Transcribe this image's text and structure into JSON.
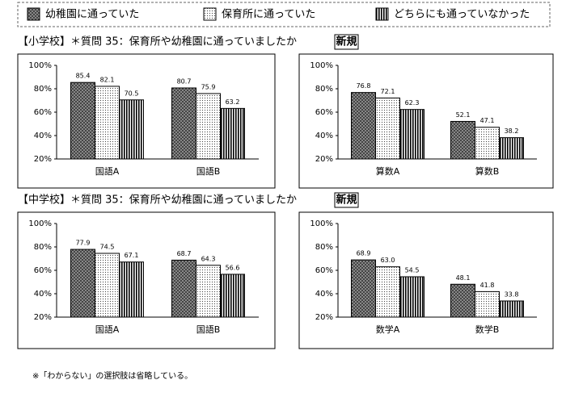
{
  "legend": [
    {
      "name": "幼稚園に通っていた",
      "pattern": "crosshatch"
    },
    {
      "name": "保育所に通っていた",
      "pattern": "dots"
    },
    {
      "name": "どちらにも通っていなかった",
      "pattern": "stripes"
    }
  ],
  "sections": [
    {
      "heading": "【小学校】＊質問 35：保育所や幼稚園に通っていましたか",
      "badge": "新規"
    },
    {
      "heading": "【中学校】＊質問 35：保育所や幼稚園に通っていましたか",
      "badge": "新規"
    }
  ],
  "footnote": "※「わからない」の選択肢は省略している。",
  "chart_data": [
    {
      "type": "bar",
      "categories": [
        "国語A",
        "国語B"
      ],
      "series": [
        {
          "values": [
            85.4,
            80.7
          ]
        },
        {
          "values": [
            82.1,
            75.9
          ]
        },
        {
          "values": [
            70.5,
            63.2
          ]
        }
      ],
      "ylim": [
        20,
        100
      ],
      "yticks": [
        {
          "value": 20,
          "label": "20%"
        },
        {
          "value": 40,
          "label": "40%"
        },
        {
          "value": 60,
          "label": "60%"
        },
        {
          "value": 80,
          "label": "80%"
        },
        {
          "value": 100,
          "label": "100%"
        }
      ],
      "grid": false
    },
    {
      "type": "bar",
      "categories": [
        "算数A",
        "算数B"
      ],
      "series": [
        {
          "values": [
            76.8,
            52.1
          ]
        },
        {
          "values": [
            72.1,
            47.1
          ]
        },
        {
          "values": [
            62.3,
            38.2
          ]
        }
      ],
      "ylim": [
        20,
        100
      ],
      "yticks": [
        {
          "value": 20,
          "label": "20%"
        },
        {
          "value": 40,
          "label": "40%"
        },
        {
          "value": 60,
          "label": "60%"
        },
        {
          "value": 80,
          "label": "80%"
        },
        {
          "value": 100,
          "label": "100%"
        }
      ],
      "grid": false
    },
    {
      "type": "bar",
      "categories": [
        "国語A",
        "国語B"
      ],
      "series": [
        {
          "values": [
            77.9,
            68.7
          ]
        },
        {
          "values": [
            74.5,
            64.3
          ]
        },
        {
          "values": [
            67.1,
            56.6
          ]
        }
      ],
      "ylim": [
        20,
        100
      ],
      "yticks": [
        {
          "value": 20,
          "label": "20%"
        },
        {
          "value": 40,
          "label": "40%"
        },
        {
          "value": 60,
          "label": "60%"
        },
        {
          "value": 80,
          "label": "80%"
        },
        {
          "value": 100,
          "label": "100%"
        }
      ],
      "grid": false
    },
    {
      "type": "bar",
      "categories": [
        "数学A",
        "数学B"
      ],
      "series": [
        {
          "values": [
            68.9,
            48.1
          ]
        },
        {
          "values": [
            63,
            41.8
          ],
          "value_labels": [
            "63.0",
            "41.8"
          ]
        },
        {
          "values": [
            54.5,
            33.8
          ]
        }
      ],
      "ylim": [
        20,
        100
      ],
      "yticks": [
        {
          "value": 20,
          "label": "20%"
        },
        {
          "value": 40,
          "label": "40%"
        },
        {
          "value": 60,
          "label": "60%"
        },
        {
          "value": 80,
          "label": "80%"
        },
        {
          "value": 100,
          "label": "100%"
        }
      ],
      "grid": false
    }
  ]
}
